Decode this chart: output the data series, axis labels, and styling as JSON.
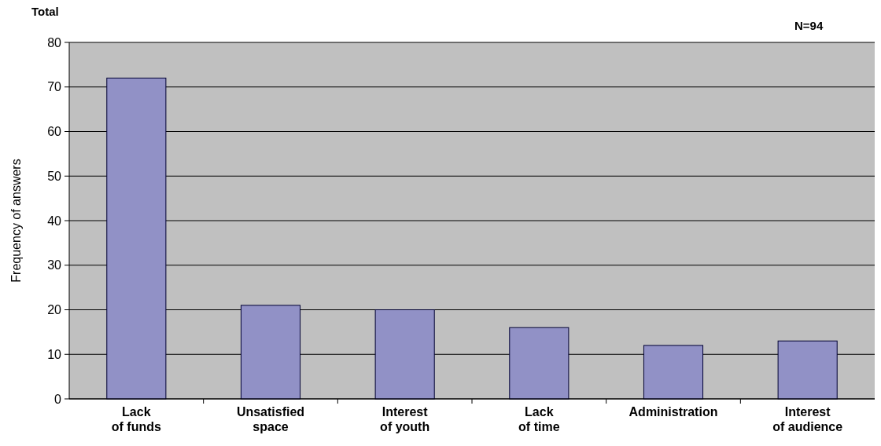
{
  "chart_data": {
    "type": "bar",
    "ylabel": "Frequency of answers",
    "annotations": [
      "Total",
      "N=94"
    ],
    "categories": [
      "Lack\nof funds",
      "Unsatisfied\nspace",
      "Interest\nof youth",
      "Lack\nof time",
      "Administration",
      "Interest\nof audience"
    ],
    "values": [
      72,
      21,
      20,
      16,
      12,
      13
    ],
    "color": "#9191c6",
    "ylim": [
      0,
      80
    ],
    "yticks": [
      0,
      10,
      20,
      30,
      40,
      50,
      60,
      70,
      80
    ],
    "grid": "y"
  }
}
